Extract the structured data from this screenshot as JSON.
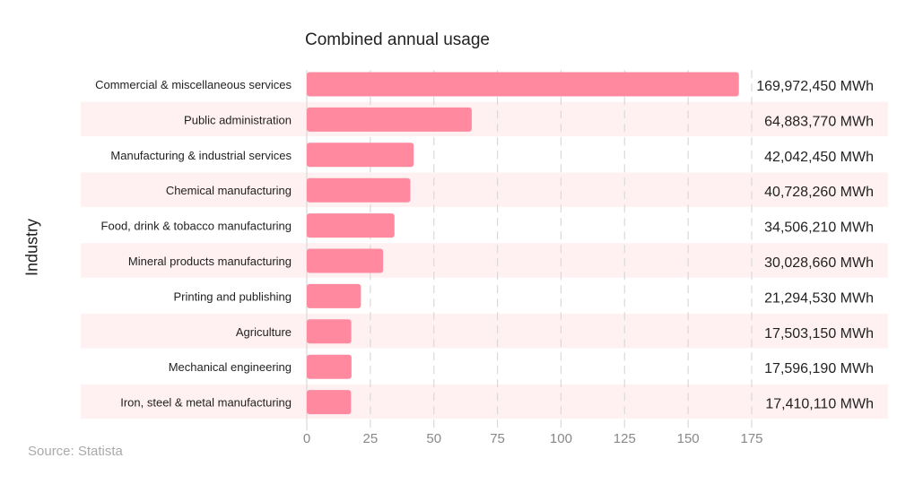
{
  "chart_data": {
    "type": "bar",
    "orientation": "horizontal",
    "title": "Combined annual usage",
    "xlabel": "",
    "ylabel": "Industry",
    "source": "Source: Statista",
    "xlim": [
      0,
      175
    ],
    "xticks": [
      "0",
      "25",
      "50",
      "75",
      "100",
      "125",
      "150",
      "175"
    ],
    "xtick_values": [
      0,
      25,
      50,
      75,
      100,
      125,
      150,
      175
    ],
    "grid": true,
    "categories": [
      "Commercial & miscellaneous services",
      "Public administration",
      "Manufacturing & industrial services",
      "Chemical manufacturing",
      "Food, drink & tobacco manufacturing",
      "Mineral products manufacturing",
      "Printing and publishing",
      "Agriculture",
      "Mechanical engineering",
      "Iron, steel & metal manufacturing"
    ],
    "values": [
      169.97245,
      64.88377,
      42.04245,
      40.72826,
      34.50621,
      30.02866,
      21.29453,
      17.50315,
      17.59619,
      17.41011
    ],
    "value_labels": [
      "169,972,450 MWh",
      "64,883,770 MWh",
      "42,042,450 MWh",
      "40,728,260 MWh",
      "34,506,210 MWh",
      "30,028,660 MWh",
      "21,294,530 MWh",
      "17,503,150 MWh",
      "17,596,190 MWh",
      "17,410,110 MWh"
    ],
    "colors": {
      "bar": "#ff8aa0",
      "band": "#fff1f2",
      "grid": "#d9d9d9"
    }
  }
}
